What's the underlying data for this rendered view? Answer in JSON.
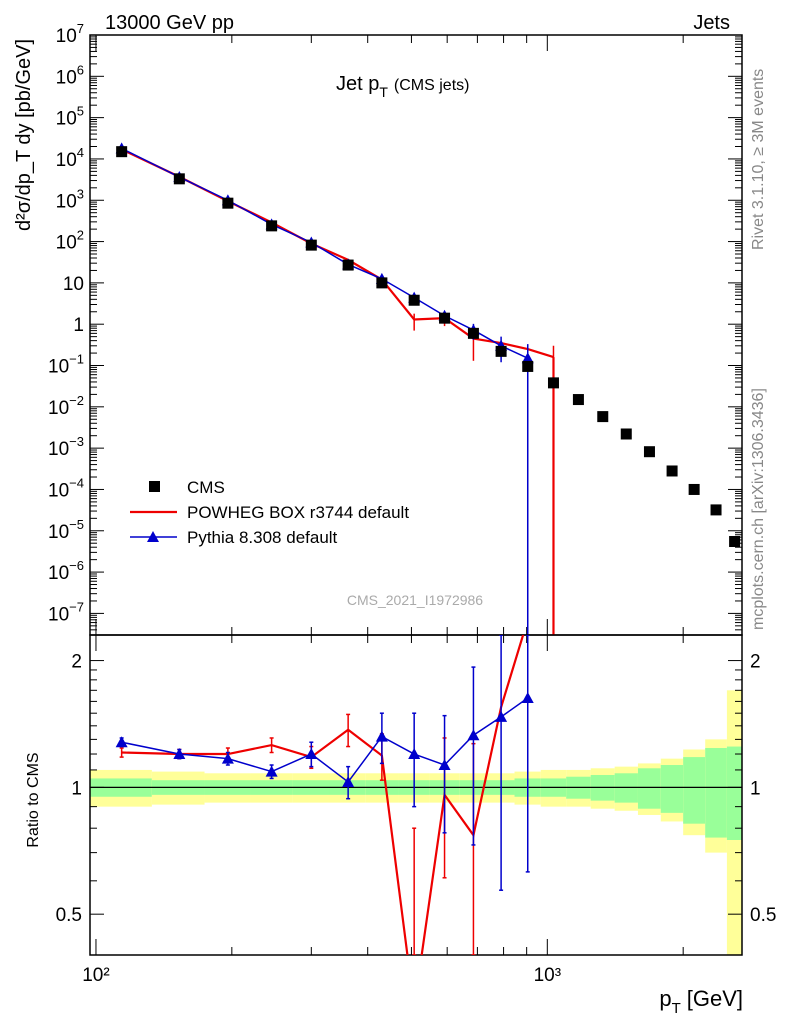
{
  "header": {
    "left": "13000 GeV pp",
    "right": "Jets"
  },
  "side_text": {
    "rivet": "Rivet 3.1.10, ≥ 3M events",
    "mcplots": "mcplots.cern.ch [arXiv:1306.3436]"
  },
  "watermark": "CMS_2021_I1972986",
  "chart_data": {
    "type": "line",
    "title": "Jet p_T (CMS jets)",
    "title_main": "Jet p",
    "title_sub": "T",
    "title_suffix": "(CMS jets)",
    "xlabel": "p_T [GeV]",
    "xlabel_main": "p",
    "xlabel_sub": "T",
    "xlabel_suffix": "[GeV]",
    "ylabel": "d²σ/dp_T dy [pb/GeV]",
    "ylabel_ratio": "Ratio to CMS",
    "xscale": "log",
    "yscale": "log",
    "xlim": [
      97,
      2700
    ],
    "ylim": [
      3e-08,
      10000000.0
    ],
    "ratio_ylim": [
      0.4,
      2.3
    ],
    "x_tick_labels": [
      "10²",
      "10³"
    ],
    "legend_position": "bottom-left",
    "legend": [
      "CMS",
      "POWHEG BOX r3744 default",
      "Pythia 8.308 default"
    ],
    "colors": {
      "cms": "#000000",
      "powheg": "#ee0000",
      "pythia": "#0000cc",
      "band_inner": "#99ff99",
      "band_outer": "#ffff99"
    },
    "bin_edges": [
      97,
      133,
      174,
      220,
      272,
      330,
      395,
      468,
      548,
      638,
      737,
      846,
      967,
      1101,
      1248,
      1410,
      1588,
      1784,
      2000,
      2238,
      2500,
      2700
    ],
    "cms": {
      "x": [
        114,
        153,
        196,
        245,
        300,
        362,
        430,
        507,
        592,
        686,
        790,
        905,
        1032,
        1172,
        1327,
        1496,
        1684,
        1890,
        2115,
        2365,
        2600
      ],
      "y": [
        15000,
        3300,
        850,
        240,
        82,
        27,
        10,
        3.8,
        1.4,
        0.6,
        0.22,
        0.095,
        0.038,
        0.015,
        0.0058,
        0.0022,
        0.00082,
        0.00028,
        0.0001,
        3.2e-05,
        5.5e-06
      ]
    },
    "powheg": {
      "x": [
        114,
        153,
        196,
        245,
        300,
        362,
        430,
        507,
        592,
        686,
        790,
        905,
        1032
      ],
      "y": [
        17000,
        3700,
        950,
        290,
        90,
        36,
        12,
        1.3,
        1.4,
        0.45,
        0.35,
        0.25,
        0.16
      ],
      "yerr_lo": [
        0,
        0,
        0,
        0,
        0,
        0,
        0,
        0.6,
        0.5,
        0.32,
        0,
        0,
        0.16
      ],
      "yerr_hi": [
        0,
        0,
        0,
        0,
        0,
        0,
        0,
        0.5,
        0.5,
        0.3,
        0,
        0,
        0.14
      ],
      "ratio": [
        1.21,
        1.2,
        1.2,
        1.26,
        1.18,
        1.37,
        1.19,
        0.3,
        0.96,
        0.77,
        1.55,
        2.5,
        4.0
      ],
      "ratio_err": [
        0.03,
        0.03,
        0.04,
        0.05,
        0.07,
        0.12,
        0.15,
        0.5,
        0.35,
        0.5,
        0,
        0,
        0
      ]
    },
    "pythia": {
      "x": [
        114,
        153,
        196,
        245,
        300,
        362,
        430,
        507,
        592,
        686,
        790,
        905
      ],
      "y": [
        18000,
        3650,
        1000,
        260,
        95,
        28,
        12.5,
        4.4,
        1.6,
        0.72,
        0.3,
        0.15
      ],
      "yerr_lo": [
        0,
        0,
        0,
        0,
        0,
        0,
        0,
        0.6,
        0.4,
        0.3,
        0.18,
        0.15
      ],
      "yerr_hi": [
        0,
        0,
        0,
        0,
        0,
        0,
        0,
        0.6,
        0.4,
        0.3,
        0.2,
        0.18
      ],
      "ratio": [
        1.28,
        1.2,
        1.17,
        1.09,
        1.2,
        1.03,
        1.32,
        1.2,
        1.13,
        1.33,
        1.47,
        1.63
      ],
      "ratio_err": [
        0.03,
        0.03,
        0.04,
        0.04,
        0.08,
        0.09,
        0.18,
        0.3,
        0.35,
        0.6,
        0.9,
        1.0
      ]
    },
    "ratio_band": {
      "inner": [
        0.05,
        0.04,
        0.04,
        0.04,
        0.04,
        0.04,
        0.04,
        0.04,
        0.04,
        0.04,
        0.04,
        0.05,
        0.05,
        0.06,
        0.07,
        0.08,
        0.11,
        0.13,
        0.18,
        0.24,
        0.25
      ],
      "outer": [
        0.1,
        0.09,
        0.08,
        0.08,
        0.08,
        0.08,
        0.08,
        0.08,
        0.08,
        0.08,
        0.08,
        0.09,
        0.1,
        0.1,
        0.11,
        0.12,
        0.14,
        0.17,
        0.23,
        0.3,
        0.7
      ]
    }
  }
}
